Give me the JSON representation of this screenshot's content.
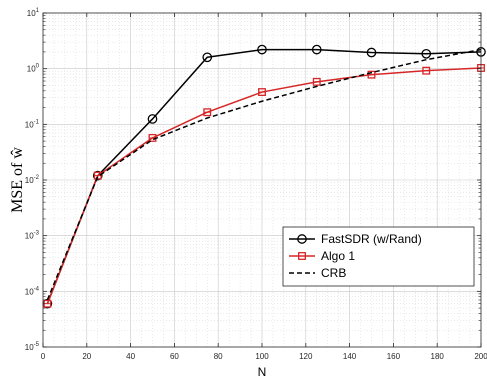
{
  "chart_data": {
    "type": "line",
    "xlabel": "N",
    "ylabel": "MSE of ŵ",
    "xlim": [
      0,
      200
    ],
    "ylim_log10": [
      -5,
      1
    ],
    "yscale": "log",
    "grid": true,
    "legend_position": "lower-right",
    "x_ticks": [
      "0",
      "20",
      "40",
      "60",
      "80",
      "100",
      "120",
      "140",
      "160",
      "180",
      "200"
    ],
    "y_ticks": [
      {
        "base": "10",
        "exp": "-5"
      },
      {
        "base": "10",
        "exp": "-4"
      },
      {
        "base": "10",
        "exp": "-3"
      },
      {
        "base": "10",
        "exp": "-2"
      },
      {
        "base": "10",
        "exp": "-1"
      },
      {
        "base": "10",
        "exp": "0"
      },
      {
        "base": "10",
        "exp": "1"
      }
    ],
    "series": [
      {
        "name": "FastSDR (w/Rand)",
        "color": "#000000",
        "marker": "circle",
        "dash": "solid",
        "x": [
          2,
          25,
          50,
          75,
          100,
          125,
          150,
          175,
          200
        ],
        "y": [
          6e-05,
          0.012,
          0.125,
          1.6,
          2.2,
          2.2,
          1.95,
          1.85,
          2.0
        ]
      },
      {
        "name": "Algo 1",
        "color": "#d62728",
        "marker": "square",
        "dash": "solid",
        "x": [
          2,
          25,
          50,
          75,
          100,
          125,
          150,
          175,
          200
        ],
        "y": [
          6e-05,
          0.012,
          0.057,
          0.165,
          0.38,
          0.58,
          0.78,
          0.92,
          1.03
        ]
      },
      {
        "name": "CRB",
        "color": "#000000",
        "marker": "none",
        "dash": "dashed",
        "x": [
          2,
          25,
          50,
          75,
          100,
          125,
          150,
          175,
          200
        ],
        "y": [
          7e-05,
          0.0115,
          0.053,
          0.13,
          0.26,
          0.48,
          0.85,
          1.45,
          2.2
        ]
      }
    ]
  }
}
